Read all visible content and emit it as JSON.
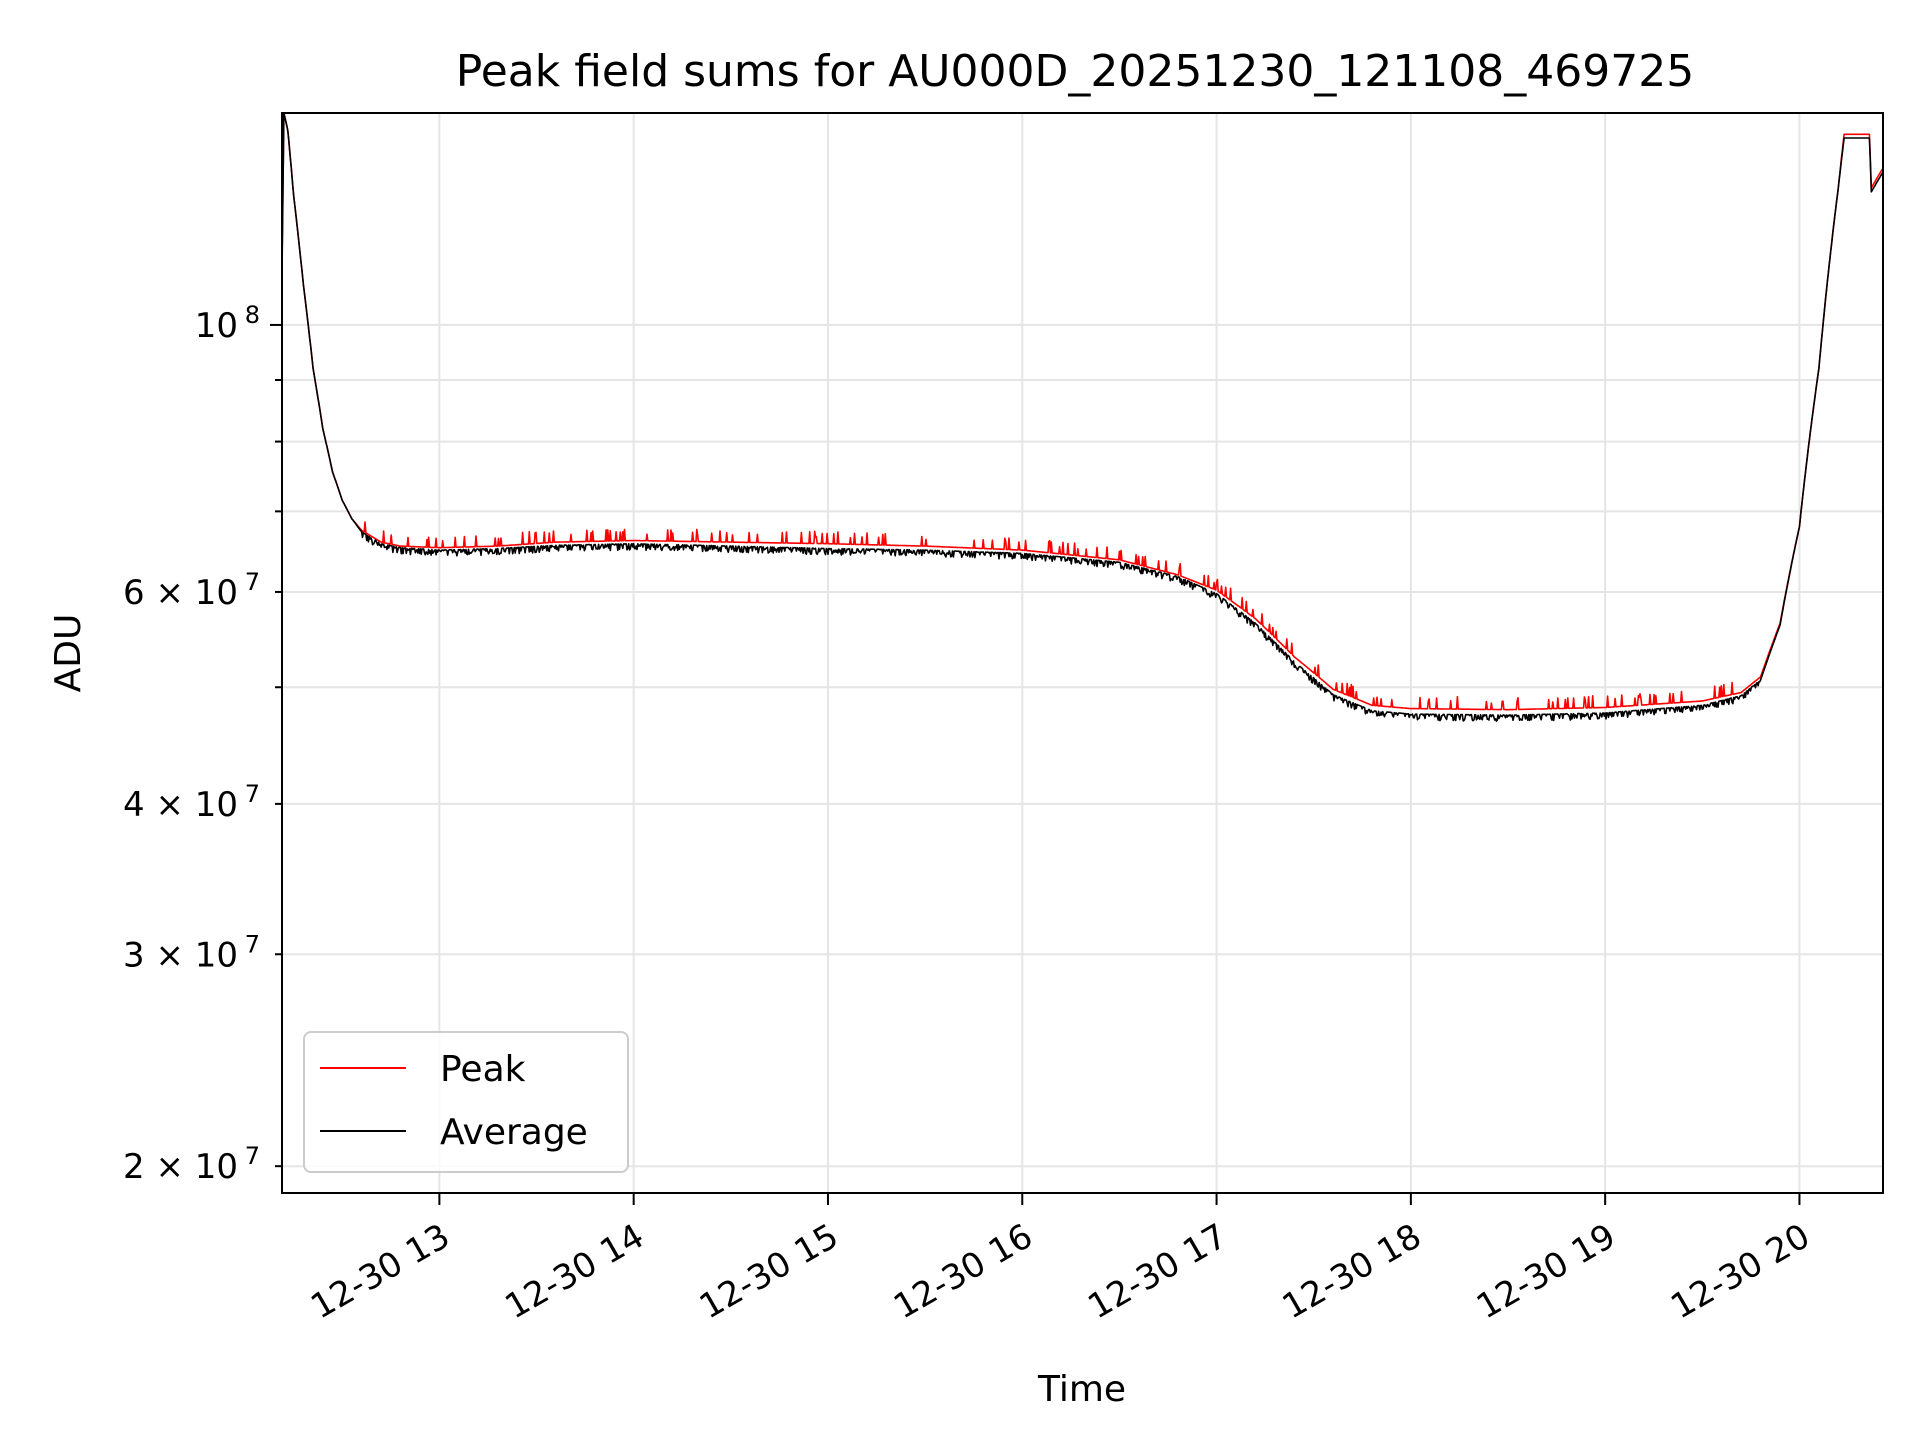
{
  "chart_data": {
    "type": "line",
    "title": "Peak field sums for AU000D_20251230_121108_469725",
    "xlabel": "Time",
    "ylabel": "ADU",
    "yscale": "log",
    "xlim": [
      12.19,
      20.43
    ],
    "ylim": [
      19000000,
      150000000
    ],
    "grid": true,
    "legend": {
      "position": "lower-left",
      "entries": [
        "Peak",
        "Average"
      ]
    },
    "x_ticks": [
      {
        "value": 13,
        "label": "12-30 13"
      },
      {
        "value": 14,
        "label": "12-30 14"
      },
      {
        "value": 15,
        "label": "12-30 15"
      },
      {
        "value": 16,
        "label": "12-30 16"
      },
      {
        "value": 17,
        "label": "12-30 17"
      },
      {
        "value": 18,
        "label": "12-30 18"
      },
      {
        "value": 19,
        "label": "12-30 19"
      },
      {
        "value": 20,
        "label": "12-30 20"
      }
    ],
    "y_major_ticks": [
      {
        "value": 100000000,
        "base": "10",
        "exp": "8"
      }
    ],
    "y_minor_ticks": [
      {
        "value": 20000000,
        "base": "2 × 10",
        "exp": "7"
      },
      {
        "value": 30000000,
        "base": "3 × 10",
        "exp": "7"
      },
      {
        "value": 40000000,
        "base": "4 × 10",
        "exp": "7"
      },
      {
        "value": 50000000,
        "base": "",
        "exp": ""
      },
      {
        "value": 60000000,
        "base": "6 × 10",
        "exp": "7"
      },
      {
        "value": 70000000,
        "base": "",
        "exp": ""
      },
      {
        "value": 80000000,
        "base": "",
        "exp": ""
      },
      {
        "value": 90000000,
        "base": "",
        "exp": ""
      }
    ],
    "series": [
      {
        "name": "Peak",
        "color": "#ff0000",
        "noise": "spikes-up",
        "x": [
          12.19,
          12.2,
          12.22,
          12.25,
          12.3,
          12.35,
          12.4,
          12.45,
          12.5,
          12.55,
          12.6,
          12.7,
          12.8,
          13.0,
          13.3,
          13.6,
          14.0,
          14.5,
          15.0,
          15.5,
          16.0,
          16.5,
          16.8,
          17.0,
          17.2,
          17.4,
          17.6,
          17.8,
          18.0,
          18.5,
          19.0,
          19.5,
          19.7,
          19.8,
          19.9,
          20.0,
          20.1,
          20.2,
          20.23,
          20.36,
          20.37,
          20.43
        ],
        "y": [
          112000000,
          150000000,
          145000000,
          128000000,
          108000000,
          92000000,
          82000000,
          75500000,
          71500000,
          69000000,
          67500000,
          66000000,
          65500000,
          65300000,
          65500000,
          66000000,
          66200000,
          66000000,
          65800000,
          65500000,
          65000000,
          63800000,
          62000000,
          60200000,
          57000000,
          53000000,
          49800000,
          48300000,
          48000000,
          47900000,
          48100000,
          48700000,
          49500000,
          51000000,
          56500000,
          68000000,
          92000000,
          130000000,
          144000000,
          144000000,
          130000000,
          135000000
        ]
      },
      {
        "name": "Average",
        "color": "#000000",
        "noise": "spikes-down",
        "x": [
          12.19,
          12.2,
          12.22,
          12.25,
          12.3,
          12.35,
          12.4,
          12.45,
          12.5,
          12.55,
          12.6,
          12.7,
          12.8,
          13.0,
          13.3,
          13.6,
          14.0,
          14.5,
          15.0,
          15.5,
          16.0,
          16.5,
          16.8,
          17.0,
          17.2,
          17.4,
          17.6,
          17.8,
          18.0,
          18.5,
          19.0,
          19.5,
          19.7,
          19.8,
          19.9,
          20.0,
          20.1,
          20.2,
          20.23,
          20.36,
          20.37,
          20.43
        ],
        "y": [
          110000000,
          150000000,
          145000000,
          128000000,
          108000000,
          92000000,
          82000000,
          75500000,
          71500000,
          69000000,
          67300000,
          65800000,
          65300000,
          65000000,
          65200000,
          65600000,
          65800000,
          65500000,
          65200000,
          65000000,
          64600000,
          63500000,
          61800000,
          59800000,
          56500000,
          52500000,
          49300000,
          47800000,
          47500000,
          47400000,
          47600000,
          48300000,
          49200000,
          50700000,
          56300000,
          68000000,
          92000000,
          130000000,
          143000000,
          143000000,
          129000000,
          134000000
        ]
      }
    ]
  }
}
